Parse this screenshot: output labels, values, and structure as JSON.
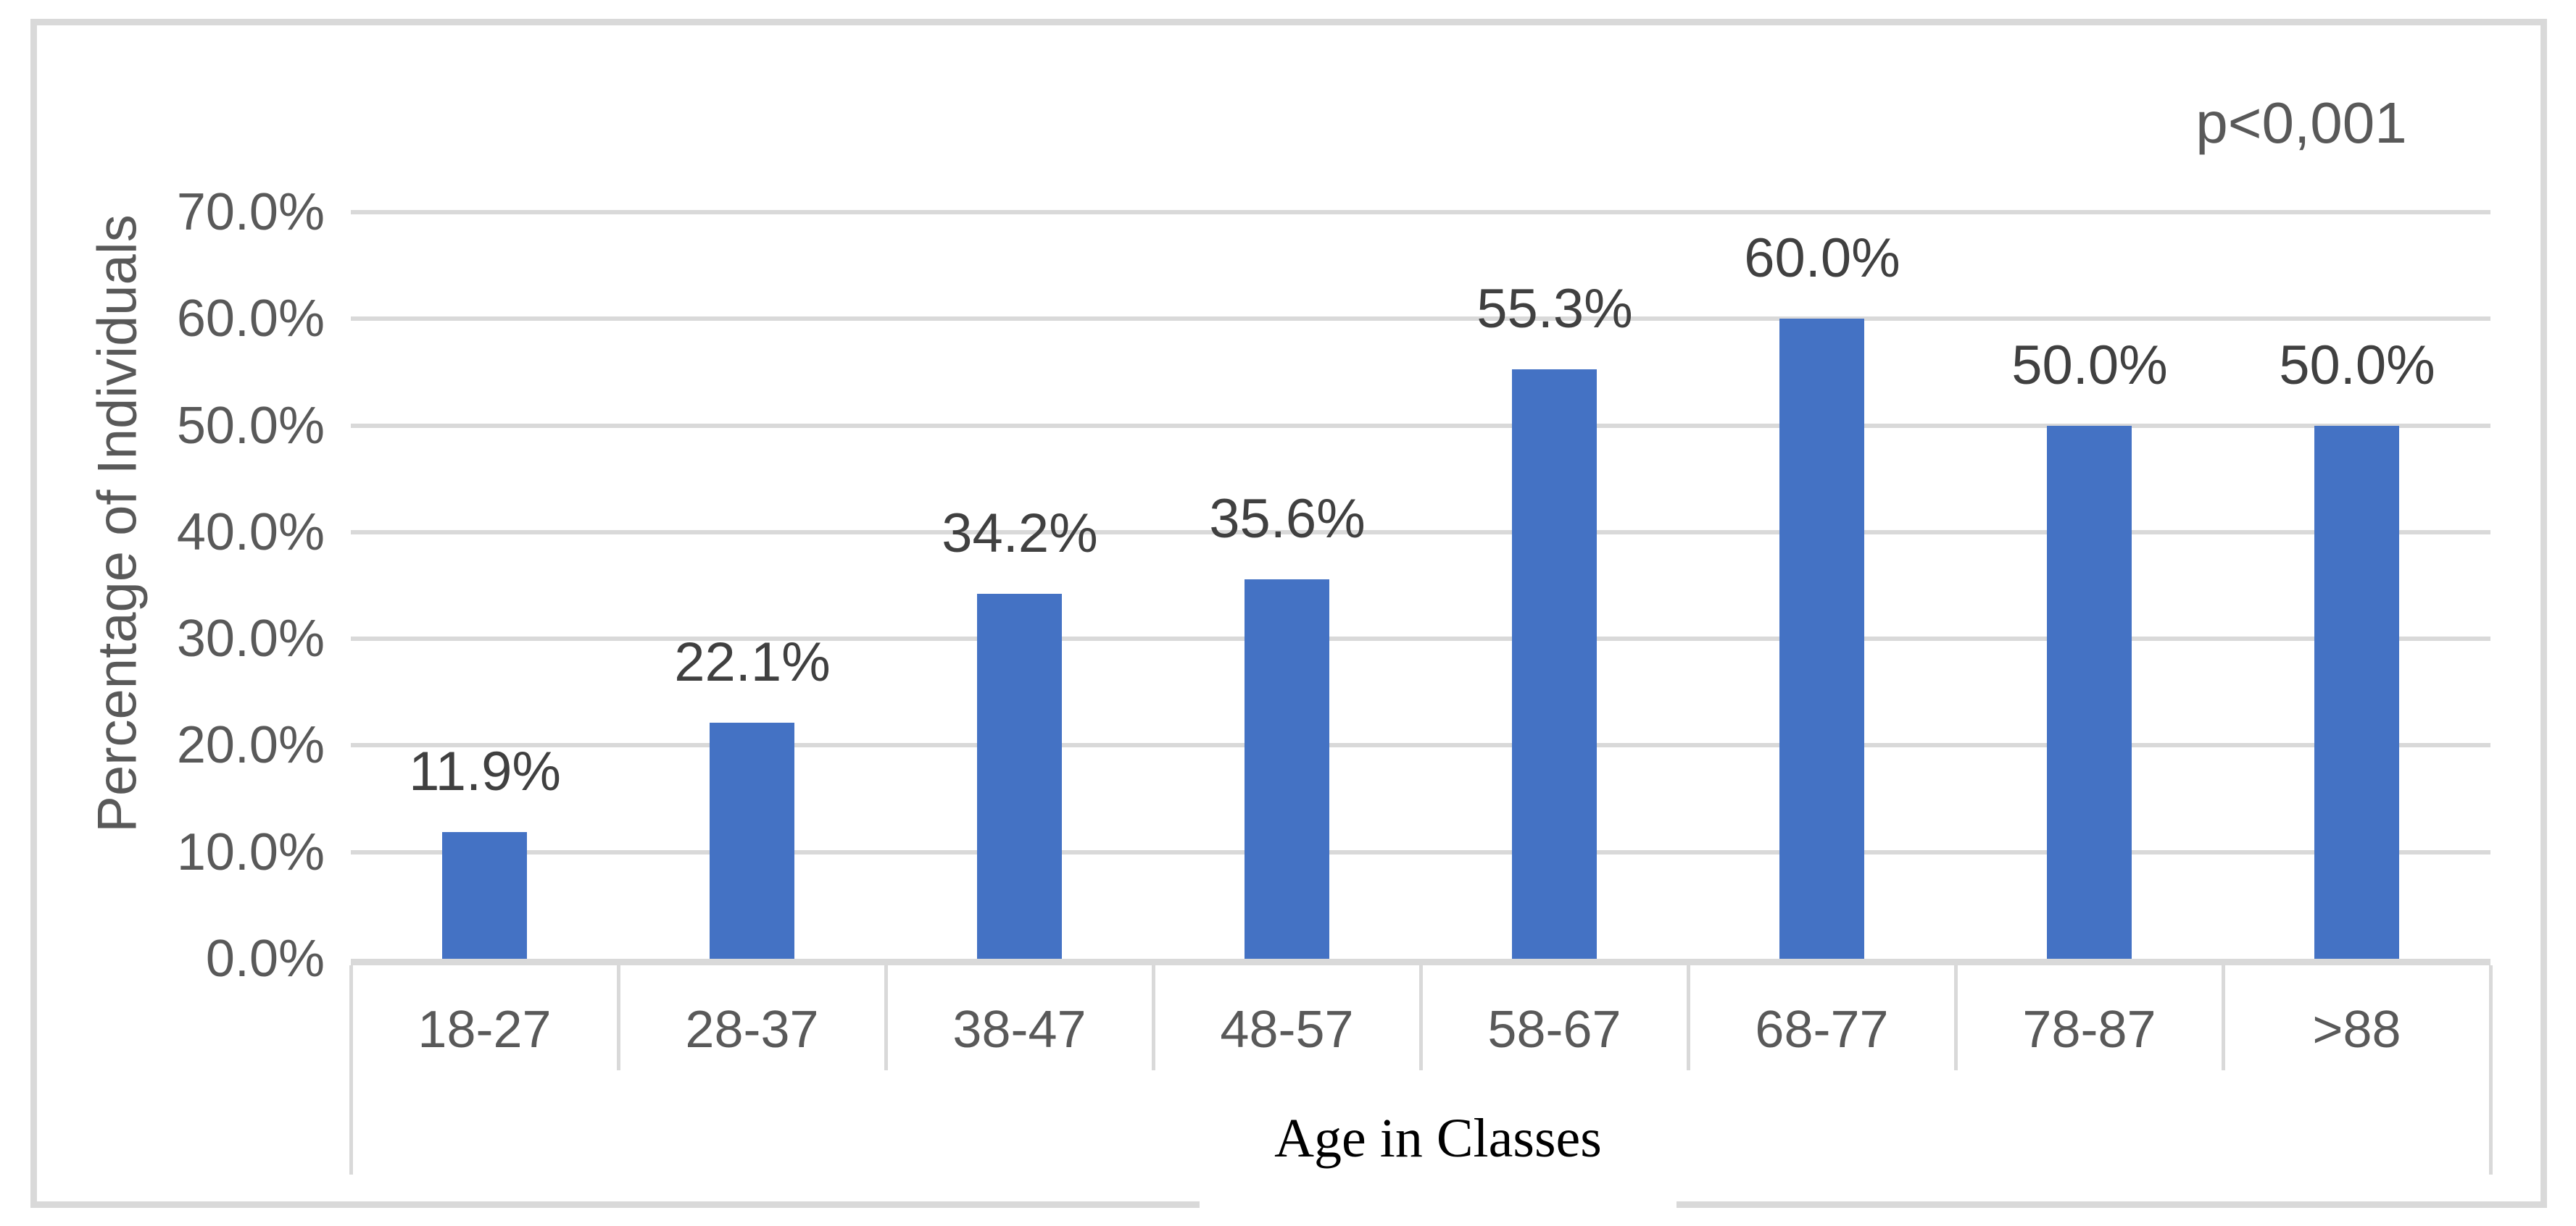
{
  "annotation": {
    "p_value": "p<0,001"
  },
  "colors": {
    "bar": "#4472C4",
    "gridline": "#D9D9D9",
    "baseline": "#D9D9D9",
    "frame_border": "#D9D9D9",
    "axis_text": "#595959",
    "data_label_text": "#404040",
    "x_title_text": "#000000",
    "background": "#FFFFFF"
  },
  "chart_data": {
    "type": "bar",
    "title": "",
    "categories": [
      "18-27",
      "28-37",
      "38-47",
      "48-57",
      "58-67",
      "68-77",
      "78-87",
      ">88"
    ],
    "values": [
      11.9,
      22.1,
      34.2,
      35.6,
      55.3,
      60.0,
      50.0,
      50.0
    ],
    "data_labels": [
      "11.9%",
      "22.1%",
      "34.2%",
      "35.6%",
      "55.3%",
      "60.0%",
      "50.0%",
      "50.0%"
    ],
    "xlabel": "Age in Classes",
    "ylabel": "Percentage of Individuals",
    "y_ticks": [
      "70.0%",
      "60.0%",
      "50.0%",
      "40.0%",
      "30.0%",
      "20.0%",
      "10.0%",
      "0.0%"
    ],
    "ylim": [
      0,
      70
    ],
    "y_step": 10,
    "grid": true,
    "legend_position": "none",
    "annotation": "p<0,001"
  }
}
